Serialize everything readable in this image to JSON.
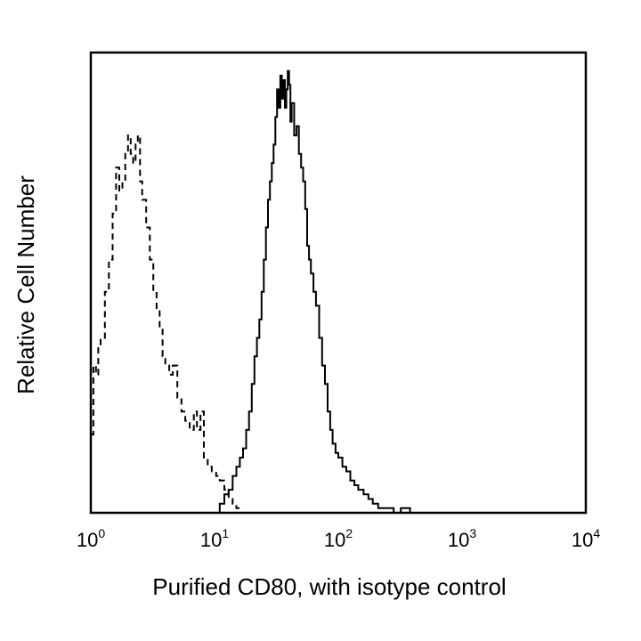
{
  "chart_data": {
    "type": "line",
    "title": "",
    "xlabel": "Purified CD80, with isotype control",
    "ylabel": "Relative Cell Number",
    "x_scale": "log",
    "xlim": [
      1,
      10000
    ],
    "ylim": [
      0,
      100
    ],
    "grid": false,
    "legend": "none",
    "x_ticks": [
      {
        "base": "10",
        "exp": "0",
        "value": 1
      },
      {
        "base": "10",
        "exp": "1",
        "value": 10
      },
      {
        "base": "10",
        "exp": "2",
        "value": 100
      },
      {
        "base": "10",
        "exp": "3",
        "value": 1000
      },
      {
        "base": "10",
        "exp": "4",
        "value": 10000
      }
    ],
    "series": [
      {
        "style": "dashed",
        "color": "#000000",
        "points": [
          [
            1.0,
            17
          ],
          [
            1.05,
            32
          ],
          [
            1.1,
            30
          ],
          [
            1.15,
            36
          ],
          [
            1.2,
            38
          ],
          [
            1.3,
            48
          ],
          [
            1.4,
            55
          ],
          [
            1.5,
            65
          ],
          [
            1.6,
            75
          ],
          [
            1.7,
            70
          ],
          [
            1.8,
            72
          ],
          [
            1.9,
            78
          ],
          [
            2.0,
            82
          ],
          [
            2.1,
            78
          ],
          [
            2.2,
            76
          ],
          [
            2.3,
            80
          ],
          [
            2.4,
            82
          ],
          [
            2.5,
            72
          ],
          [
            2.6,
            68
          ],
          [
            2.8,
            62
          ],
          [
            3.0,
            55
          ],
          [
            3.2,
            48
          ],
          [
            3.4,
            44
          ],
          [
            3.6,
            40
          ],
          [
            3.8,
            34
          ],
          [
            4.0,
            32
          ],
          [
            4.3,
            30
          ],
          [
            4.6,
            32
          ],
          [
            5.0,
            25
          ],
          [
            5.4,
            22
          ],
          [
            5.8,
            20
          ],
          [
            6.3,
            18
          ],
          [
            6.8,
            22
          ],
          [
            7.2,
            18
          ],
          [
            7.7,
            22
          ],
          [
            8.2,
            12
          ],
          [
            8.8,
            10
          ],
          [
            9.5,
            9
          ],
          [
            10.3,
            8
          ],
          [
            11.0,
            7
          ],
          [
            12.0,
            5
          ],
          [
            13.0,
            3
          ],
          [
            14.0,
            2
          ],
          [
            15.0,
            1
          ],
          [
            16.0,
            0
          ]
        ]
      },
      {
        "style": "solid",
        "color": "#000000",
        "points": [
          [
            10.0,
            0
          ],
          [
            11.0,
            2
          ],
          [
            12.0,
            4
          ],
          [
            13.0,
            5
          ],
          [
            14.0,
            8
          ],
          [
            15.0,
            10
          ],
          [
            16.0,
            12
          ],
          [
            17.0,
            14
          ],
          [
            18.0,
            18
          ],
          [
            19.0,
            22
          ],
          [
            20.0,
            28
          ],
          [
            21.0,
            34
          ],
          [
            22.0,
            38
          ],
          [
            23.0,
            42
          ],
          [
            24.0,
            48
          ],
          [
            25.0,
            55
          ],
          [
            26.0,
            62
          ],
          [
            27.0,
            68
          ],
          [
            28.0,
            72
          ],
          [
            29.0,
            76
          ],
          [
            30.0,
            80
          ],
          [
            31.0,
            86
          ],
          [
            32.0,
            92
          ],
          [
            33.0,
            88
          ],
          [
            34.0,
            95
          ],
          [
            35.0,
            90
          ],
          [
            36.0,
            94
          ],
          [
            37.0,
            88
          ],
          [
            38.0,
            92
          ],
          [
            39.0,
            96
          ],
          [
            40.0,
            93
          ],
          [
            41.0,
            85
          ],
          [
            42.0,
            89
          ],
          [
            44.0,
            82
          ],
          [
            46.0,
            84
          ],
          [
            48.0,
            78
          ],
          [
            50.0,
            75
          ],
          [
            52.0,
            72
          ],
          [
            54.0,
            66
          ],
          [
            56.0,
            58
          ],
          [
            58.0,
            55
          ],
          [
            60.0,
            52
          ],
          [
            63.0,
            48
          ],
          [
            66.0,
            45
          ],
          [
            70.0,
            38
          ],
          [
            74.0,
            32
          ],
          [
            78.0,
            28
          ],
          [
            82.0,
            22
          ],
          [
            86.0,
            18
          ],
          [
            90.0,
            15
          ],
          [
            95.0,
            13
          ],
          [
            100.0,
            12
          ],
          [
            108.0,
            10
          ],
          [
            116.0,
            9
          ],
          [
            125.0,
            7
          ],
          [
            135.0,
            6
          ],
          [
            145.0,
            5
          ],
          [
            160.0,
            4
          ],
          [
            175.0,
            3
          ],
          [
            190.0,
            2
          ],
          [
            210.0,
            1
          ],
          [
            240.0,
            1
          ],
          [
            280.0,
            0
          ],
          [
            320.0,
            1
          ],
          [
            380.0,
            0
          ],
          [
            450.0,
            0
          ]
        ]
      }
    ]
  }
}
